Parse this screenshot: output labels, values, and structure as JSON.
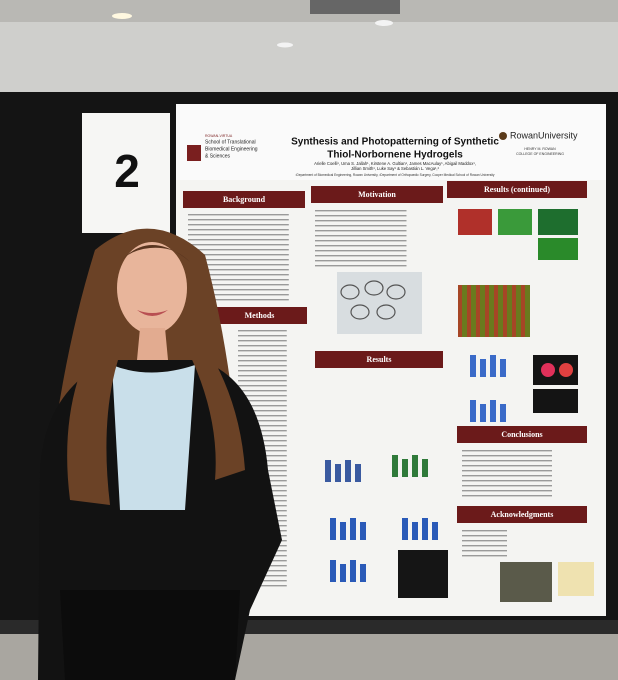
{
  "sign": {
    "number": "2"
  },
  "poster": {
    "title": [
      "Synthesis and Photopatterning of Synthetic",
      "Thiol-Norbornene Hydrogels"
    ],
    "authors": [
      "Arielle Coelli¹, Uma S. Jallah¹, Kirstene A. Gultian¹, James MacAulay¹, Abigail Maddox¹,",
      "Jillian Smith¹, Luke Say¹ & Sebastián L. Vega¹,²"
    ],
    "affiliation": "¹Department of Biomedical Engineering, Rowan University, ²Department of Orthopaedic Surgery, Cooper Medical School of Rowan University",
    "left_logo": [
      "ROWAN-VIRTUA",
      "School of Translational",
      "Biomedical Engineering",
      "& Sciences"
    ],
    "right_logo": [
      "RowanUniversity",
      "HENRY M. ROWAN",
      "COLLEGE OF ENGINEERING"
    ],
    "sections": [
      "Background",
      "Motivation",
      "Results (continued)",
      "Methods",
      "Results",
      "Conclusions",
      "Acknowledgments"
    ]
  }
}
